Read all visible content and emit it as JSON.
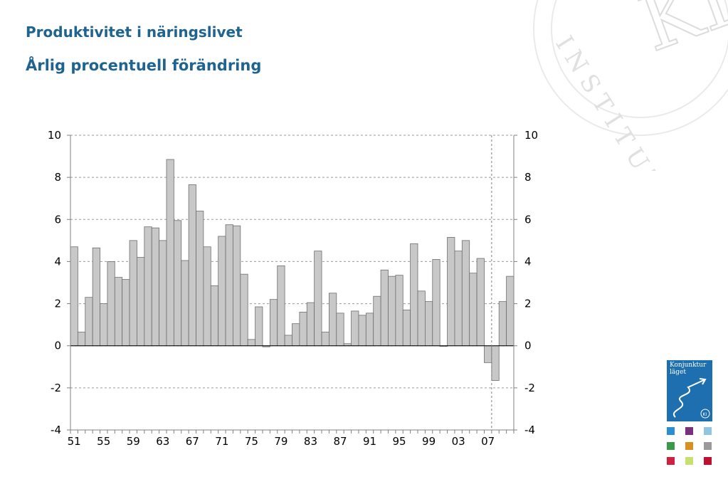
{
  "header": {
    "title": "Produktivitet i näringslivet",
    "subtitle": "Årlig procentuell förändring"
  },
  "watermark": {
    "text": "INSTITUTET",
    "monogram": "KI"
  },
  "logo": {
    "title": "Konjunktur läget",
    "badge": "KI",
    "brand_color": "#1e6fb0",
    "swatch_colors": [
      "#2a8fd0",
      "#7a2f7f",
      "#8fc6e0",
      "#3a9a4a",
      "#d89020",
      "#9a9a9a",
      "#d02040",
      "#c8e070",
      "#c01030"
    ]
  },
  "chart_data": {
    "type": "bar",
    "title": "Produktivitet i näringslivet",
    "subtitle": "Årlig procentuell förändring",
    "x_tick_labels": [
      "51",
      "55",
      "59",
      "63",
      "67",
      "71",
      "75",
      "79",
      "83",
      "87",
      "91",
      "95",
      "99",
      "03",
      "07"
    ],
    "y_ticks": [
      10,
      8,
      6,
      4,
      2,
      0,
      -2,
      -4
    ],
    "ylim": [
      -4,
      10
    ],
    "grid": true,
    "vertical_marker": "07",
    "bar_color": "#c8c8c8",
    "categories": [
      "1951",
      "1952",
      "1953",
      "1954",
      "1955",
      "1956",
      "1957",
      "1958",
      "1959",
      "1960",
      "1961",
      "1962",
      "1963",
      "1964",
      "1965",
      "1966",
      "1967",
      "1968",
      "1969",
      "1970",
      "1971",
      "1972",
      "1973",
      "1974",
      "1975",
      "1976",
      "1977",
      "1978",
      "1979",
      "1980",
      "1981",
      "1982",
      "1983",
      "1984",
      "1985",
      "1986",
      "1987",
      "1988",
      "1989",
      "1990",
      "1991",
      "1992",
      "1993",
      "1994",
      "1995",
      "1996",
      "1997",
      "1998",
      "1999",
      "2000",
      "2001",
      "2002",
      "2003",
      "2004",
      "2005",
      "2006",
      "2007",
      "2008",
      "2009",
      "2010"
    ],
    "values": [
      4.7,
      0.65,
      2.3,
      4.65,
      2.0,
      4.0,
      3.25,
      3.15,
      5.0,
      4.2,
      5.65,
      5.6,
      5.0,
      8.85,
      5.95,
      4.05,
      7.65,
      6.4,
      4.7,
      2.85,
      5.2,
      5.75,
      5.7,
      3.4,
      0.3,
      1.85,
      -0.05,
      2.2,
      3.8,
      0.5,
      1.05,
      1.6,
      2.05,
      4.5,
      0.65,
      2.5,
      1.55,
      0.1,
      1.65,
      1.45,
      1.55,
      2.35,
      3.6,
      3.3,
      3.35,
      1.7,
      4.85,
      2.6,
      2.1,
      4.1,
      0.0,
      5.15,
      4.5,
      5.0,
      3.45,
      4.15,
      -0.8,
      -1.65,
      2.1,
      3.3
    ]
  }
}
